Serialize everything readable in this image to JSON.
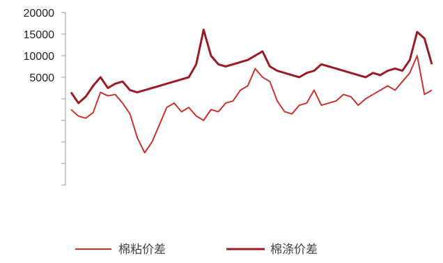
{
  "chart_data": {
    "type": "line",
    "title": "",
    "xlabel": "",
    "ylabel": "",
    "ylim": [
      -20000,
      20000
    ],
    "yticks": [
      20000,
      15000,
      10000,
      5000,
      0,
      -5000,
      -10000,
      -15000,
      -20000
    ],
    "ytick_labels": [
      "20000",
      "15000",
      "10000",
      "5000",
      "",
      "",
      "",
      "",
      ""
    ],
    "grid": false,
    "legend_position": "bottom",
    "n_points": 50,
    "series": [
      {
        "name": "棉粘价差",
        "color": "#c8332e",
        "values": [
          -2500,
          -4000,
          -4500,
          -3200,
          1500,
          700,
          1000,
          -1000,
          -3500,
          -9000,
          -12500,
          -10000,
          -6000,
          -2000,
          -1000,
          -3000,
          -2000,
          -4000,
          -5000,
          -2500,
          -3000,
          -1000,
          -500,
          2000,
          3000,
          7000,
          5000,
          4000,
          -500,
          -3000,
          -3500,
          -1500,
          -1000,
          2000,
          -1500,
          -1000,
          -500,
          1000,
          500,
          -1500,
          0,
          1000,
          2000,
          3000,
          2000,
          4000,
          6000,
          10000,
          1000,
          2000
        ]
      },
      {
        "name": "棉涤价差",
        "color": "#9b1b24",
        "values": [
          1500,
          -1000,
          500,
          3000,
          5000,
          2500,
          3500,
          4000,
          2000,
          1500,
          2000,
          2500,
          3000,
          3500,
          4000,
          4500,
          5000,
          8000,
          16000,
          10000,
          8000,
          7500,
          8000,
          8500,
          9000,
          10000,
          11000,
          7500,
          6500,
          6000,
          5500,
          5000,
          6000,
          6500,
          8000,
          7500,
          7000,
          6500,
          6000,
          5500,
          5000,
          6000,
          5500,
          6500,
          7000,
          6500,
          9000,
          15500,
          14000,
          8000
        ]
      }
    ]
  }
}
